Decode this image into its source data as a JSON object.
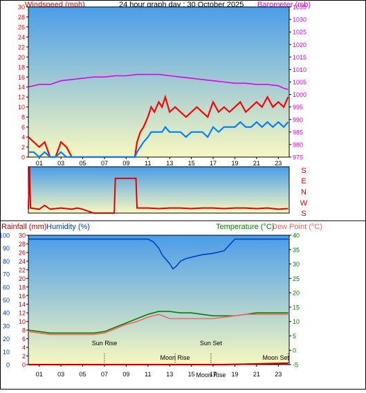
{
  "header": {
    "title": "24 hour graph day : 30 October 2025",
    "left_label": "Windspeed (mph)",
    "right_label": "Barometer (mb)"
  },
  "colors": {
    "windspeed_gust": "#ff0000",
    "windspeed_avg": "#0080ff",
    "barometer": "#e000e0",
    "direction": "#e00000",
    "humidity": "#0040c0",
    "temperature": "#008000",
    "dewpoint": "#ff6060",
    "rainfall": "#c00000",
    "sky_top": "#4a9de8",
    "sky_bottom": "#f8f8c0"
  },
  "time_ticks": [
    "01",
    "03",
    "05",
    "07",
    "09",
    "11",
    "13",
    "15",
    "17",
    "19",
    "21",
    "23"
  ],
  "chart_data": [
    {
      "type": "line",
      "name": "wind-baro",
      "x_range": [
        0,
        24
      ],
      "ylim_left": [
        0,
        30
      ],
      "ylim_right": [
        975,
        1035
      ],
      "yticks_left": [
        "0",
        "2",
        "4",
        "6",
        "8",
        "10",
        "12",
        "14",
        "16",
        "18",
        "20",
        "22",
        "24",
        "26",
        "28",
        "30"
      ],
      "yticks_right": [
        "975",
        "980",
        "985",
        "990",
        "995",
        "1000",
        "1005",
        "1010",
        "1015",
        "1020",
        "1025",
        "1030",
        "1035"
      ],
      "series": [
        {
          "key": "gust",
          "axis": "left",
          "x": [
            0,
            0.5,
            1,
            1.5,
            2,
            2.5,
            3,
            3.5,
            4,
            4.5,
            5,
            6,
            7,
            8,
            9,
            9.8,
            10,
            10.3,
            10.6,
            11,
            11.3,
            11.6,
            12,
            12.3,
            12.6,
            13,
            13.5,
            14,
            14.5,
            15,
            15.5,
            16,
            16.5,
            17,
            17.5,
            18,
            18.5,
            19,
            19.5,
            20,
            20.5,
            21,
            21.5,
            22,
            22.5,
            23,
            23.5,
            23.9
          ],
          "values": [
            4,
            3,
            2,
            3,
            0,
            0,
            3,
            2,
            0,
            0,
            0,
            0,
            0,
            0,
            0,
            0,
            3,
            5,
            6,
            8,
            10,
            9,
            11,
            10,
            12,
            9,
            10,
            9,
            8,
            9,
            10,
            9,
            8,
            11,
            9,
            10,
            9,
            10,
            11,
            9,
            10,
            11,
            10,
            12,
            10,
            11,
            10,
            12
          ]
        },
        {
          "key": "average",
          "axis": "left",
          "x": [
            0,
            0.5,
            1,
            1.5,
            2,
            2.5,
            3,
            3.5,
            4,
            4.5,
            5,
            6,
            7,
            8,
            9,
            9.8,
            10,
            10.3,
            10.6,
            11,
            11.3,
            11.6,
            12,
            12.3,
            12.6,
            13,
            13.5,
            14,
            14.5,
            15,
            15.5,
            16,
            16.5,
            17,
            17.5,
            18,
            18.5,
            19,
            19.5,
            20,
            20.5,
            21,
            21.5,
            22,
            22.5,
            23,
            23.5,
            23.9
          ],
          "values": [
            1,
            1,
            0,
            1,
            0,
            0,
            1,
            0,
            0,
            0,
            0,
            0,
            0,
            0,
            0,
            0,
            1,
            2,
            3,
            4,
            5,
            5,
            5,
            5,
            6,
            5,
            5,
            5,
            4,
            5,
            5,
            5,
            4,
            6,
            5,
            6,
            6,
            6,
            7,
            6,
            6,
            7,
            6,
            7,
            6,
            7,
            6,
            7
          ]
        },
        {
          "key": "barometer",
          "axis": "right",
          "x": [
            0,
            1,
            2,
            3,
            4,
            5,
            6,
            7,
            8,
            9,
            10,
            11,
            12,
            13,
            14,
            15,
            16,
            17,
            18,
            19,
            20,
            21,
            22,
            23,
            23.5,
            23.9
          ],
          "values": [
            1003.0,
            1004.0,
            1004.0,
            1005.5,
            1006.0,
            1006.5,
            1007.0,
            1007.0,
            1007.5,
            1007.5,
            1008.0,
            1008.0,
            1008.0,
            1007.5,
            1007.0,
            1006.5,
            1006.0,
            1005.5,
            1005.0,
            1004.5,
            1004.5,
            1004.0,
            1004.0,
            1003.5,
            1002.5,
            1002.0
          ]
        }
      ]
    },
    {
      "type": "line",
      "name": "wind-direction",
      "x_range": [
        0,
        24
      ],
      "yticks": [
        "S",
        "E",
        "N",
        "W",
        "S"
      ],
      "ylim": [
        0,
        360
      ],
      "series": [
        {
          "key": "direction",
          "x": [
            0,
            0.1,
            0.2,
            1,
            1.5,
            2,
            3,
            4,
            4.5,
            5,
            6,
            7,
            7.9,
            8,
            9,
            9.9,
            10,
            11,
            12,
            13,
            14,
            15,
            16,
            17,
            18,
            19,
            20,
            21,
            22,
            23,
            23.9
          ],
          "values": [
            30,
            360,
            40,
            30,
            60,
            30,
            40,
            30,
            40,
            30,
            0,
            0,
            0,
            270,
            270,
            270,
            40,
            40,
            35,
            40,
            40,
            35,
            40,
            40,
            35,
            40,
            40,
            35,
            40,
            30,
            35
          ]
        }
      ]
    },
    {
      "type": "line",
      "name": "rain-humidity-temp",
      "x_range": [
        0,
        24
      ],
      "ylim_humidity": [
        0,
        100
      ],
      "ylim_rainfall": [
        0,
        30
      ],
      "ylim_temperature": [
        -5,
        40
      ],
      "yticks_humidity": [
        "0",
        "10",
        "20",
        "30",
        "40",
        "50",
        "60",
        "70",
        "80",
        "90",
        "100"
      ],
      "yticks_rainfall": [
        "0",
        "2",
        "4",
        "6",
        "8",
        "10",
        "12",
        "14",
        "16",
        "18",
        "20",
        "22",
        "24",
        "26",
        "28",
        "30"
      ],
      "yticks_temperature": [
        "-5",
        "0",
        "5",
        "10",
        "15",
        "20",
        "25",
        "30",
        "35",
        "40"
      ],
      "labels": {
        "rainfall": "Rainfall (mm)",
        "humidity": "Humidity (%)",
        "temperature": "Temperature (°C)",
        "dewpoint": "Dew Point (°C)"
      },
      "events": [
        {
          "label": "Sun Rise",
          "x": 7.0
        },
        {
          "label": "Sun Set",
          "x": 16.8
        },
        {
          "label": "Moon Rise",
          "x": 13.5
        },
        {
          "label": "Moon Rise",
          "x": 16.8
        },
        {
          "label": "Moon Set",
          "x": 23.9
        }
      ],
      "series": [
        {
          "key": "humidity",
          "x": [
            0,
            2,
            4,
            6,
            8,
            10,
            11,
            11.5,
            12,
            12.3,
            12.6,
            13,
            13.3,
            13.6,
            14,
            14.5,
            15,
            16,
            17,
            18,
            19,
            20,
            22,
            23.9
          ],
          "values": [
            97,
            97,
            97,
            97,
            97,
            97,
            97,
            95,
            90,
            85,
            82,
            78,
            74,
            76,
            80,
            82,
            83,
            85,
            86,
            88,
            97,
            97,
            97,
            97
          ]
        },
        {
          "key": "temperature",
          "x": [
            0,
            1,
            2,
            3,
            4,
            5,
            6,
            7,
            8,
            9,
            10,
            11,
            12,
            13,
            14,
            15,
            16,
            17,
            18,
            19,
            20,
            21,
            22,
            23,
            23.9
          ],
          "values": [
            7.0,
            6.5,
            6.0,
            6.0,
            6.0,
            6.0,
            6.0,
            6.5,
            8.0,
            9.5,
            11.0,
            12.5,
            13.5,
            13.5,
            13.0,
            13.0,
            12.5,
            12.0,
            12.0,
            12.0,
            12.5,
            13.0,
            13.0,
            13.0,
            13.0
          ]
        },
        {
          "key": "dewpoint",
          "x": [
            0,
            1,
            2,
            3,
            4,
            5,
            6,
            7,
            8,
            9,
            10,
            11,
            12,
            13,
            14,
            15,
            16,
            17,
            18,
            19,
            20,
            21,
            22,
            23,
            23.9
          ],
          "values": [
            6.5,
            6.0,
            5.5,
            5.5,
            5.5,
            5.5,
            5.5,
            6.0,
            7.5,
            9.0,
            10.0,
            11.5,
            12.5,
            11.0,
            11.0,
            11.0,
            11.0,
            11.0,
            11.5,
            12.0,
            12.5,
            12.5,
            12.5,
            12.5,
            12.5
          ]
        },
        {
          "key": "rainfall",
          "x": [
            0,
            1,
            6,
            12,
            18,
            23.5,
            23.9
          ],
          "values": [
            0,
            0,
            0,
            0,
            0,
            0.3,
            0.3
          ]
        }
      ]
    }
  ]
}
